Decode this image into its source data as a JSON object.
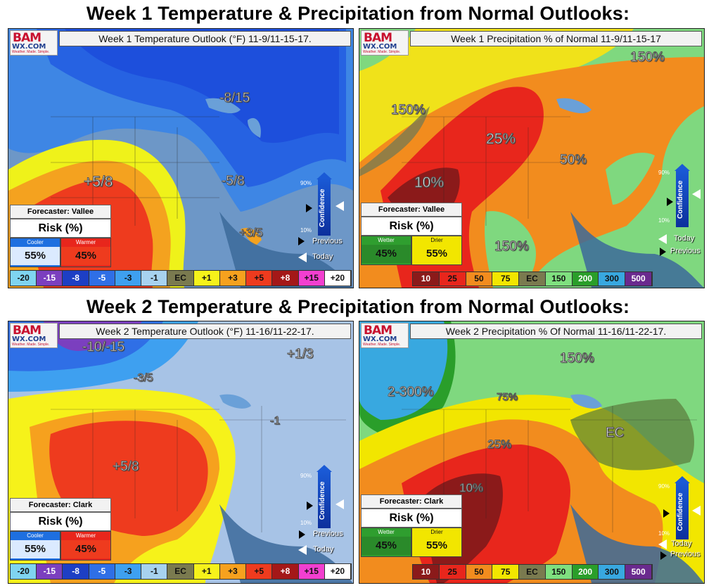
{
  "headings": {
    "week1": "Week 1 Temperature & Precipitation from Normal Outlooks:",
    "week2": "Week 2 Temperature & Precipitation from Normal Outlooks:"
  },
  "logo": {
    "bam": "BAM",
    "wx": "WX.COM",
    "tagline": "Weather. Made. Simple."
  },
  "panels": {
    "w1_temp": {
      "title": "Week 1 Temperature Outlook (°F) 11-9/11-15-17.",
      "labels": [
        "-8/15",
        "+5/8",
        "-5/8",
        "+3/5"
      ],
      "forecaster": "Forecaster: Vallee",
      "risk_title": "Risk (%)",
      "risk_left": {
        "label": "Cooler",
        "value": "55%",
        "color": "#1e6fe0"
      },
      "risk_right": {
        "label": "Warmer",
        "value": "45%",
        "color": "#e8261c"
      }
    },
    "w1_precip": {
      "title": "Week 1 Precipitation % of Normal 11-9/11-15-17",
      "labels": [
        "150%",
        "150%",
        "25%",
        "10%",
        "50%",
        "150%"
      ],
      "forecaster": "Forecaster: Vallee",
      "risk_title": "Risk (%)",
      "risk_left": {
        "label": "Wetter",
        "value": "45%",
        "color": "#2f9e2f"
      },
      "risk_right": {
        "label": "Drier",
        "value": "55%",
        "color": "#f2e600"
      }
    },
    "w2_temp": {
      "title": "Week 2 Temperature Outlook (°F) 11-16/11-22-17.",
      "labels": [
        "-10/-15",
        "-3/5",
        "+1/3",
        "+5/8",
        "-1"
      ],
      "forecaster": "Forecaster: Clark",
      "risk_title": "Risk (%)",
      "risk_left": {
        "label": "Cooler",
        "value": "55%",
        "color": "#1e6fe0"
      },
      "risk_right": {
        "label": "Warmer",
        "value": "45%",
        "color": "#e8261c"
      }
    },
    "w2_precip": {
      "title": "Week 2 Precipitation % Of Normal 11-16/11-22-17.",
      "labels": [
        "150%",
        "2-300%",
        "75%",
        "EC",
        "25%",
        "10%"
      ],
      "forecaster": "Forecaster: Clark",
      "risk_title": "Risk (%)",
      "risk_left": {
        "label": "Wetter",
        "value": "45%",
        "color": "#2f9e2f"
      },
      "risk_right": {
        "label": "Drier",
        "value": "55%",
        "color": "#f2e600"
      }
    }
  },
  "confidence": {
    "label": "Confidence",
    "high": "90%",
    "low": "10%",
    "previous": "Previous",
    "today": "Today"
  },
  "temp_scale": [
    {
      "t": "-20",
      "c": "#7fd4f0"
    },
    {
      "t": "-15",
      "c": "#7b3fbf"
    },
    {
      "t": "-8",
      "c": "#1d3fc4"
    },
    {
      "t": "-5",
      "c": "#2f6fe6"
    },
    {
      "t": "-3",
      "c": "#3ea0f0"
    },
    {
      "t": "-1",
      "c": "#a7d2ef"
    },
    {
      "t": "EC",
      "c": "#7a7a4f"
    },
    {
      "t": "+1",
      "c": "#f6f21a"
    },
    {
      "t": "+3",
      "c": "#f6a11e"
    },
    {
      "t": "+5",
      "c": "#ee3b1e"
    },
    {
      "t": "+8",
      "c": "#a41818"
    },
    {
      "t": "+15",
      "c": "#f23fd0"
    },
    {
      "t": "+20",
      "c": "#ffffff"
    }
  ],
  "precip_scale": [
    {
      "t": "10",
      "c": "#8b1a1a"
    },
    {
      "t": "25",
      "c": "#e8261c"
    },
    {
      "t": "50",
      "c": "#f28c1e"
    },
    {
      "t": "75",
      "c": "#f2e600"
    },
    {
      "t": "EC",
      "c": "#7a7a4f"
    },
    {
      "t": "150",
      "c": "#7fe07f"
    },
    {
      "t": "200",
      "c": "#2a9e2a"
    },
    {
      "t": "300",
      "c": "#38a8e0"
    },
    {
      "t": "500",
      "c": "#6a2a8e"
    }
  ]
}
